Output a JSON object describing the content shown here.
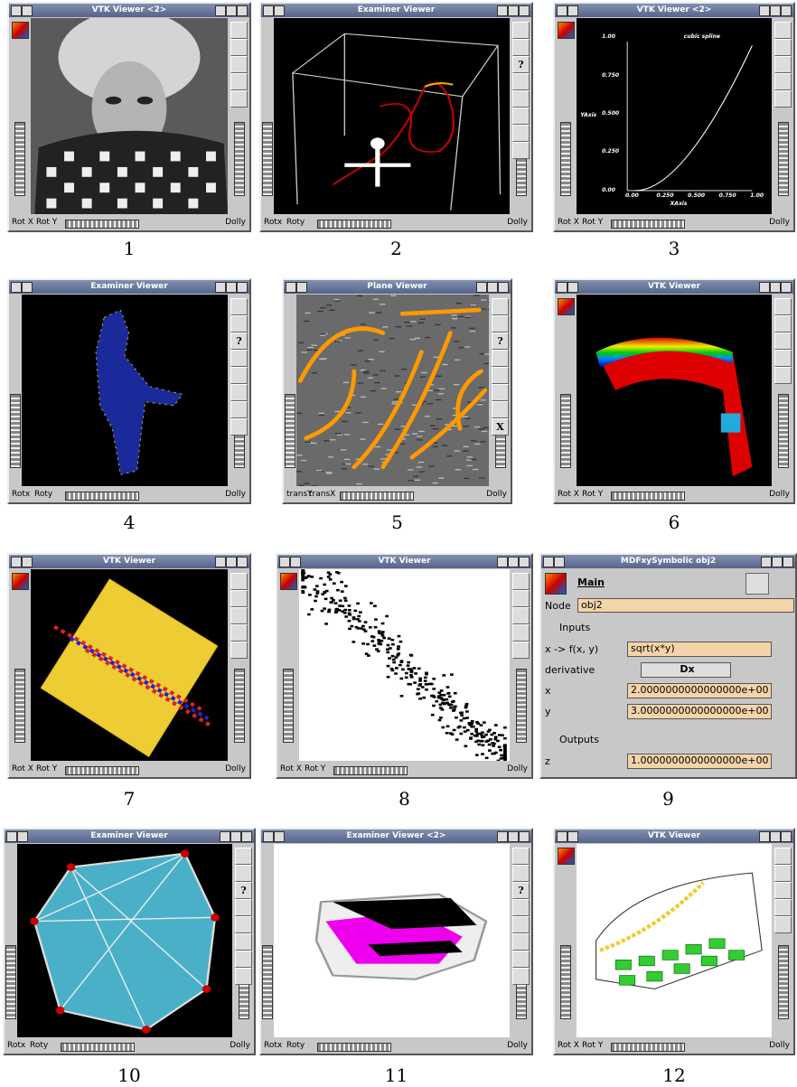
{
  "panels": [
    {
      "number": "1",
      "title": "VTK Viewer <2>",
      "bottom_labels": [
        "Rot X",
        "Rot Y"
      ],
      "dolly": "Dolly"
    },
    {
      "number": "2",
      "title": "Examiner Viewer",
      "bottom_labels": [
        "Rotx",
        "Roty"
      ],
      "dolly": "Dolly",
      "help": "?"
    },
    {
      "number": "3",
      "title": "VTK Viewer <2>",
      "bottom_labels": [
        "Rot X",
        "Rot Y"
      ],
      "dolly": "Dolly",
      "plot": {
        "title": "cubic spline",
        "y_label": "YAxis",
        "x_label": "XAxis",
        "yticks": [
          "0.00",
          "0.250",
          "0.500",
          "0.750",
          "1.00"
        ],
        "xticks": [
          "0.00",
          "0.250",
          "0.500",
          "0.750",
          "1.00"
        ]
      }
    },
    {
      "number": "4",
      "title": "Examiner Viewer",
      "bottom_labels": [
        "Rotx",
        "Roty"
      ],
      "dolly": "Dolly",
      "help": "?"
    },
    {
      "number": "5",
      "title": "Plane Viewer",
      "bottom_labels": [
        "transY",
        "transX"
      ],
      "dolly": "Dolly",
      "help": "?",
      "close": "X"
    },
    {
      "number": "6",
      "title": "VTK Viewer",
      "bottom_labels": [
        "Rot X",
        "Rot Y"
      ],
      "dolly": "Dolly"
    },
    {
      "number": "7",
      "title": "VTK Viewer",
      "bottom_labels": [
        "Rot X",
        "Rot Y"
      ],
      "dolly": "Dolly"
    },
    {
      "number": "8",
      "title": "VTK Viewer",
      "bottom_labels": [
        "Rot X",
        "Rot Y"
      ],
      "dolly": "Dolly"
    },
    {
      "number": "9",
      "title": "MDFxySymbolic obj2",
      "form": {
        "tab": "Main",
        "node_label": "Node",
        "node": "obj2",
        "inputs": "Inputs",
        "rows": [
          [
            "x -> f(x, y)",
            "sqrt(x*y)"
          ],
          [
            "derivative",
            "Dx"
          ],
          [
            "x",
            "2.0000000000000000e+00"
          ],
          [
            "y",
            "3.0000000000000000e+00"
          ]
        ],
        "outputs": "Outputs",
        "out_rows": [
          [
            "z",
            "1.0000000000000000e+00"
          ]
        ]
      }
    },
    {
      "number": "10",
      "title": "Examiner Viewer",
      "bottom_labels": [
        "Rotx",
        "Roty"
      ],
      "dolly": "Dolly",
      "help": "?"
    },
    {
      "number": "11",
      "title": "Examiner Viewer <2>",
      "bottom_labels": [
        "Rotx",
        "Roty"
      ],
      "dolly": "Dolly",
      "help": "?"
    },
    {
      "number": "12",
      "title": "VTK Viewer",
      "bottom_labels": [
        "Rot X",
        "Rot Y"
      ],
      "dolly": "Dolly"
    }
  ]
}
